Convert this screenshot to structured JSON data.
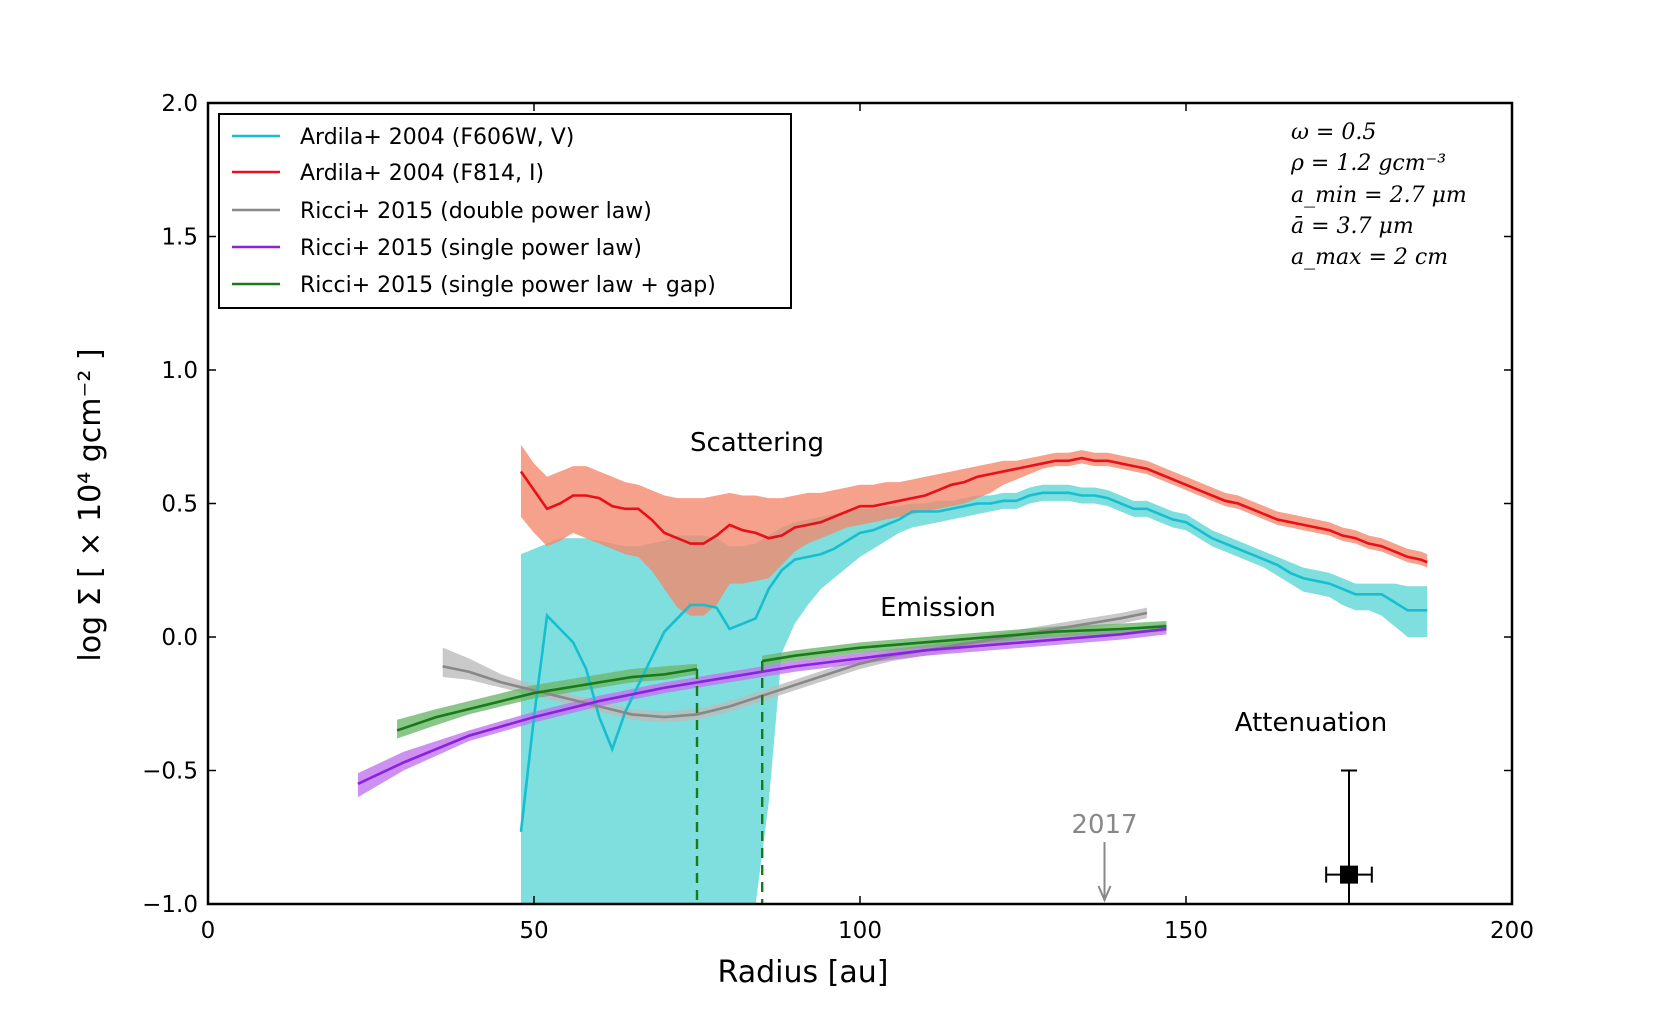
{
  "chart_data": {
    "type": "line",
    "xlabel": "Radius [au]",
    "ylabel": "log Σ [ × 10⁴ gcm⁻² ]",
    "xlim": [
      0,
      200
    ],
    "ylim": [
      -1.0,
      2.0
    ],
    "xticks": [
      "0",
      "50",
      "100",
      "150",
      "200"
    ],
    "yticks": [
      "2.0",
      "1.5",
      "1.0",
      "0.5",
      "0.0",
      "−0.5",
      "−1.0"
    ],
    "legend_position": "top-left",
    "parameters": [
      "ω = 0.5",
      "ρ = 1.2 gcm⁻³",
      "a_min = 2.7 μm",
      "ā = 3.7 μm",
      "a_max = 2 cm"
    ],
    "annotations": {
      "scattering": "Scattering",
      "emission": "Emission",
      "attenuation": "Attenuation",
      "year_marker": "2017",
      "year_marker_x": 137.5
    },
    "series": [
      {
        "name": "Ardila+ 2004 (F606W, V)",
        "color": "#17BECF",
        "band_color": "#7FDEDE",
        "x": [
          48,
          50,
          52,
          54,
          56,
          58,
          60,
          62,
          64,
          66,
          68,
          70,
          72,
          74,
          76,
          78,
          80,
          82,
          84,
          86,
          88,
          90,
          92,
          94,
          96,
          98,
          100,
          102,
          104,
          106,
          108,
          110,
          112,
          114,
          116,
          118,
          120,
          122,
          124,
          126,
          128,
          130,
          132,
          134,
          136,
          138,
          140,
          142,
          144,
          146,
          148,
          150,
          152,
          154,
          156,
          158,
          160,
          162,
          164,
          166,
          168,
          170,
          172,
          174,
          176,
          178,
          180,
          182,
          184,
          186,
          187
        ],
        "y": [
          -0.73,
          -0.3,
          0.08,
          0.03,
          -0.02,
          -0.12,
          -0.3,
          -0.42,
          -0.28,
          -0.18,
          -0.08,
          0.02,
          0.07,
          0.12,
          0.12,
          0.11,
          0.03,
          0.05,
          0.07,
          0.18,
          0.25,
          0.29,
          0.3,
          0.31,
          0.33,
          0.36,
          0.39,
          0.4,
          0.42,
          0.44,
          0.47,
          0.47,
          0.47,
          0.48,
          0.49,
          0.5,
          0.5,
          0.51,
          0.51,
          0.53,
          0.54,
          0.54,
          0.54,
          0.53,
          0.53,
          0.52,
          0.5,
          0.48,
          0.48,
          0.46,
          0.44,
          0.43,
          0.4,
          0.37,
          0.35,
          0.33,
          0.31,
          0.29,
          0.27,
          0.24,
          0.22,
          0.21,
          0.2,
          0.18,
          0.16,
          0.16,
          0.16,
          0.13,
          0.1,
          0.1,
          0.1
        ],
        "lower": [
          -1.0,
          -1.0,
          -1.0,
          -1.0,
          -1.0,
          -1.0,
          -1.0,
          -1.0,
          -1.0,
          -1.0,
          -1.0,
          -1.0,
          -1.0,
          -1.0,
          -1.0,
          -1.0,
          -1.0,
          -1.0,
          -1.0,
          -0.62,
          -0.06,
          0.05,
          0.12,
          0.18,
          0.22,
          0.26,
          0.3,
          0.33,
          0.36,
          0.39,
          0.41,
          0.42,
          0.43,
          0.44,
          0.45,
          0.46,
          0.47,
          0.48,
          0.48,
          0.5,
          0.51,
          0.51,
          0.51,
          0.5,
          0.5,
          0.49,
          0.47,
          0.45,
          0.45,
          0.43,
          0.41,
          0.4,
          0.37,
          0.34,
          0.32,
          0.3,
          0.28,
          0.26,
          0.23,
          0.2,
          0.17,
          0.16,
          0.15,
          0.12,
          0.1,
          0.1,
          0.08,
          0.04,
          0.0,
          0.0,
          0.0
        ],
        "upper": [
          0.31,
          0.33,
          0.35,
          0.37,
          0.37,
          0.37,
          0.36,
          0.35,
          0.34,
          0.34,
          0.35,
          0.36,
          0.38,
          0.38,
          0.38,
          0.37,
          0.34,
          0.34,
          0.35,
          0.38,
          0.41,
          0.43,
          0.44,
          0.45,
          0.46,
          0.47,
          0.48,
          0.48,
          0.49,
          0.49,
          0.5,
          0.5,
          0.51,
          0.51,
          0.52,
          0.53,
          0.53,
          0.54,
          0.54,
          0.56,
          0.57,
          0.57,
          0.57,
          0.56,
          0.56,
          0.55,
          0.53,
          0.51,
          0.51,
          0.49,
          0.47,
          0.46,
          0.43,
          0.4,
          0.38,
          0.36,
          0.34,
          0.32,
          0.3,
          0.28,
          0.26,
          0.25,
          0.24,
          0.22,
          0.2,
          0.2,
          0.2,
          0.2,
          0.19,
          0.19,
          0.19
        ]
      },
      {
        "name": "Ardila+ 2004 (F814, I)",
        "color": "#E8101A",
        "band_color": "#F4866A",
        "x": [
          48,
          50,
          52,
          54,
          56,
          58,
          60,
          62,
          64,
          66,
          68,
          70,
          72,
          74,
          76,
          78,
          80,
          82,
          84,
          86,
          88,
          90,
          92,
          94,
          96,
          98,
          100,
          102,
          104,
          106,
          108,
          110,
          112,
          114,
          116,
          118,
          120,
          122,
          124,
          126,
          128,
          130,
          132,
          134,
          136,
          138,
          140,
          142,
          144,
          146,
          148,
          150,
          152,
          154,
          156,
          158,
          160,
          162,
          164,
          166,
          168,
          170,
          172,
          174,
          176,
          178,
          180,
          182,
          184,
          186,
          187
        ],
        "y": [
          0.62,
          0.55,
          0.48,
          0.5,
          0.53,
          0.53,
          0.52,
          0.49,
          0.48,
          0.48,
          0.44,
          0.39,
          0.37,
          0.35,
          0.35,
          0.38,
          0.42,
          0.4,
          0.39,
          0.37,
          0.38,
          0.41,
          0.42,
          0.43,
          0.45,
          0.47,
          0.49,
          0.49,
          0.5,
          0.51,
          0.52,
          0.53,
          0.55,
          0.57,
          0.58,
          0.6,
          0.61,
          0.62,
          0.63,
          0.64,
          0.65,
          0.66,
          0.66,
          0.67,
          0.66,
          0.66,
          0.65,
          0.64,
          0.63,
          0.61,
          0.59,
          0.57,
          0.55,
          0.53,
          0.51,
          0.5,
          0.48,
          0.46,
          0.44,
          0.43,
          0.42,
          0.41,
          0.4,
          0.38,
          0.37,
          0.35,
          0.34,
          0.32,
          0.3,
          0.29,
          0.28
        ],
        "lower": [
          0.45,
          0.39,
          0.34,
          0.36,
          0.39,
          0.37,
          0.35,
          0.33,
          0.31,
          0.3,
          0.25,
          0.18,
          0.11,
          0.08,
          0.08,
          0.12,
          0.2,
          0.2,
          0.21,
          0.22,
          0.27,
          0.32,
          0.35,
          0.37,
          0.39,
          0.41,
          0.42,
          0.43,
          0.44,
          0.45,
          0.46,
          0.47,
          0.48,
          0.49,
          0.5,
          0.52,
          0.54,
          0.57,
          0.59,
          0.61,
          0.63,
          0.64,
          0.64,
          0.65,
          0.64,
          0.64,
          0.63,
          0.62,
          0.61,
          0.59,
          0.57,
          0.55,
          0.53,
          0.51,
          0.49,
          0.48,
          0.46,
          0.44,
          0.42,
          0.41,
          0.4,
          0.39,
          0.38,
          0.36,
          0.35,
          0.33,
          0.32,
          0.3,
          0.28,
          0.27,
          0.26
        ],
        "upper": [
          0.72,
          0.65,
          0.6,
          0.62,
          0.64,
          0.64,
          0.62,
          0.6,
          0.58,
          0.57,
          0.55,
          0.53,
          0.52,
          0.52,
          0.52,
          0.53,
          0.54,
          0.53,
          0.53,
          0.52,
          0.52,
          0.53,
          0.54,
          0.54,
          0.55,
          0.56,
          0.57,
          0.57,
          0.58,
          0.58,
          0.59,
          0.6,
          0.61,
          0.62,
          0.63,
          0.64,
          0.65,
          0.66,
          0.66,
          0.67,
          0.68,
          0.69,
          0.69,
          0.7,
          0.69,
          0.69,
          0.68,
          0.67,
          0.66,
          0.64,
          0.62,
          0.6,
          0.58,
          0.56,
          0.54,
          0.53,
          0.51,
          0.49,
          0.47,
          0.46,
          0.45,
          0.44,
          0.43,
          0.41,
          0.4,
          0.38,
          0.37,
          0.35,
          0.33,
          0.32,
          0.31
        ]
      },
      {
        "name": "Ricci+ 2015 (double power law)",
        "color": "#888888",
        "band_color": "#BBBBBB",
        "dashed_model": true,
        "x": [
          36,
          40,
          45,
          50,
          55,
          60,
          65,
          70,
          75,
          80,
          85,
          90,
          95,
          100,
          105,
          110,
          115,
          120,
          125,
          130,
          135,
          140,
          144
        ],
        "y": [
          -0.11,
          -0.13,
          -0.17,
          -0.2,
          -0.23,
          -0.26,
          -0.29,
          -0.3,
          -0.29,
          -0.26,
          -0.22,
          -0.18,
          -0.14,
          -0.1,
          -0.07,
          -0.05,
          -0.03,
          -0.01,
          0.01,
          0.03,
          0.05,
          0.07,
          0.09
        ],
        "lower": [
          -0.15,
          -0.16,
          -0.19,
          -0.22,
          -0.25,
          -0.28,
          -0.31,
          -0.32,
          -0.31,
          -0.28,
          -0.24,
          -0.2,
          -0.16,
          -0.12,
          -0.09,
          -0.07,
          -0.05,
          -0.03,
          -0.01,
          0.01,
          0.03,
          0.05,
          0.07
        ],
        "upper": [
          -0.04,
          -0.08,
          -0.14,
          -0.18,
          -0.21,
          -0.24,
          -0.27,
          -0.28,
          -0.27,
          -0.24,
          -0.2,
          -0.16,
          -0.12,
          -0.08,
          -0.05,
          -0.03,
          -0.01,
          0.01,
          0.03,
          0.05,
          0.07,
          0.09,
          0.11
        ]
      },
      {
        "name": "Ricci+ 2015 (single power law)",
        "color": "#8B22E0",
        "band_color": "#C077EE",
        "dashed_model": true,
        "x": [
          23,
          30,
          40,
          50,
          60,
          70,
          80,
          90,
          100,
          110,
          120,
          130,
          140,
          147
        ],
        "y": [
          -0.55,
          -0.47,
          -0.37,
          -0.3,
          -0.24,
          -0.19,
          -0.15,
          -0.11,
          -0.08,
          -0.05,
          -0.03,
          -0.01,
          0.01,
          0.03
        ],
        "lower": [
          -0.6,
          -0.5,
          -0.39,
          -0.32,
          -0.26,
          -0.21,
          -0.17,
          -0.13,
          -0.1,
          -0.07,
          -0.05,
          -0.03,
          -0.01,
          0.01
        ],
        "upper": [
          -0.51,
          -0.43,
          -0.35,
          -0.28,
          -0.22,
          -0.17,
          -0.13,
          -0.09,
          -0.06,
          -0.03,
          -0.01,
          0.01,
          0.03,
          0.05
        ]
      },
      {
        "name": "Ricci+ 2015 (single power law + gap)",
        "color": "#1A7A1A",
        "band_color": "#6DB86D",
        "dashed_model": true,
        "x": [
          29,
          35,
          40,
          45,
          50,
          55,
          60,
          65,
          70,
          75
        ],
        "y": [
          -0.35,
          -0.3,
          -0.27,
          -0.24,
          -0.21,
          -0.19,
          -0.17,
          -0.15,
          -0.14,
          -0.12
        ],
        "lower": [
          -0.38,
          -0.33,
          -0.29,
          -0.26,
          -0.23,
          -0.21,
          -0.19,
          -0.17,
          -0.16,
          -0.14
        ],
        "upper": [
          -0.31,
          -0.27,
          -0.24,
          -0.21,
          -0.18,
          -0.16,
          -0.14,
          -0.12,
          -0.11,
          -0.1
        ],
        "x2": [
          85,
          90,
          100,
          110,
          120,
          130,
          140,
          147
        ],
        "y2": [
          -0.09,
          -0.07,
          -0.04,
          -0.02,
          0.0,
          0.02,
          0.03,
          0.04
        ],
        "lower2": [
          -0.11,
          -0.09,
          -0.06,
          -0.04,
          -0.02,
          0.0,
          0.01,
          0.02
        ],
        "upper2": [
          -0.07,
          -0.05,
          -0.02,
          0.0,
          0.02,
          0.04,
          0.05,
          0.06
        ],
        "gap_edges_x": [
          75,
          85
        ]
      }
    ],
    "attenuation_point": {
      "x": 175,
      "y": -0.89,
      "xerr": 3.5,
      "yerr_low": 0.11,
      "yerr_high": 0.39
    }
  }
}
